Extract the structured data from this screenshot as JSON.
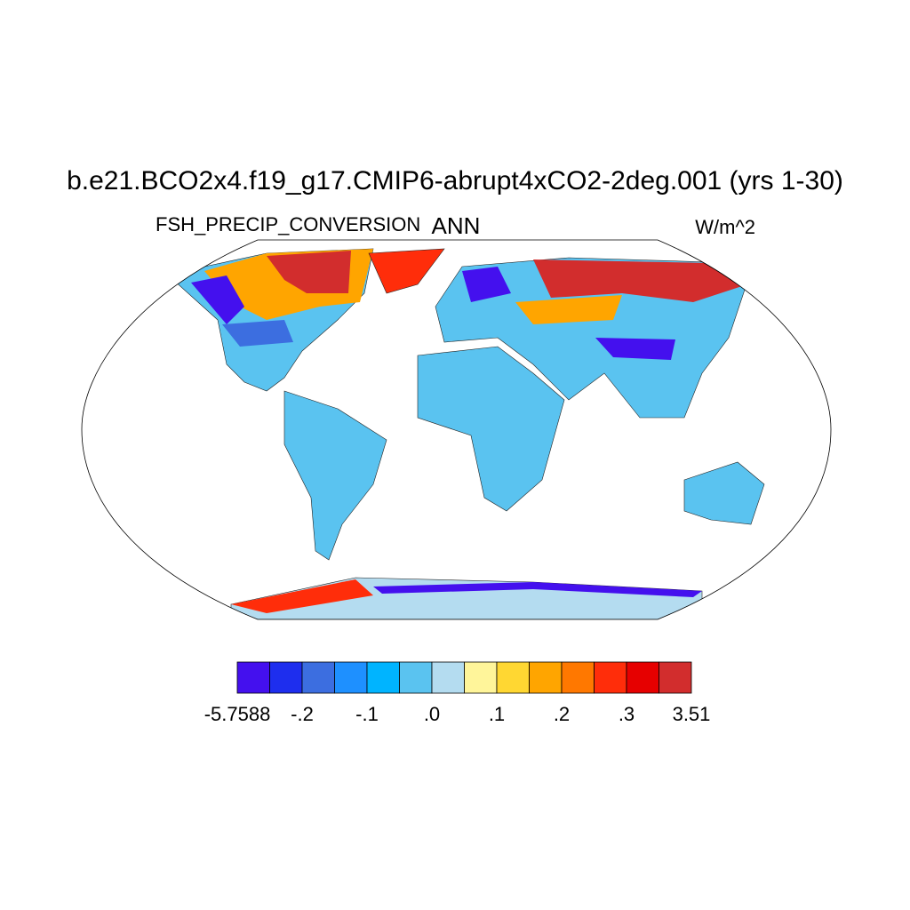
{
  "title": "b.e21.BCO2x4.f19_g17.CMIP6-abrupt4xCO2-2deg.001 (yrs 1-30)",
  "left_string": "FSH_PRECIP_CONVERSION",
  "center_string": "ANN",
  "right_string": "W/m^2",
  "colorbar": {
    "colors": [
      "#4410ee",
      "#1e2eee",
      "#3c6ee0",
      "#1e90ff",
      "#00b4ff",
      "#5ac3f0",
      "#b4dcf0",
      "#fff59a",
      "#ffd732",
      "#ffa500",
      "#ff7800",
      "#ff2d0a",
      "#e60000",
      "#d22d2d"
    ],
    "ticks": [
      {
        "value": -5.7588,
        "label": "-5.7588"
      },
      {
        "value": -0.2,
        "label": "-.2"
      },
      {
        "value": -0.1,
        "label": "-.1"
      },
      {
        "value": 0.0,
        "label": ".0"
      },
      {
        "value": 0.1,
        "label": ".1"
      },
      {
        "value": 0.2,
        "label": ".2"
      },
      {
        "value": 0.3,
        "label": ".3"
      },
      3.51
    ]
  }
}
